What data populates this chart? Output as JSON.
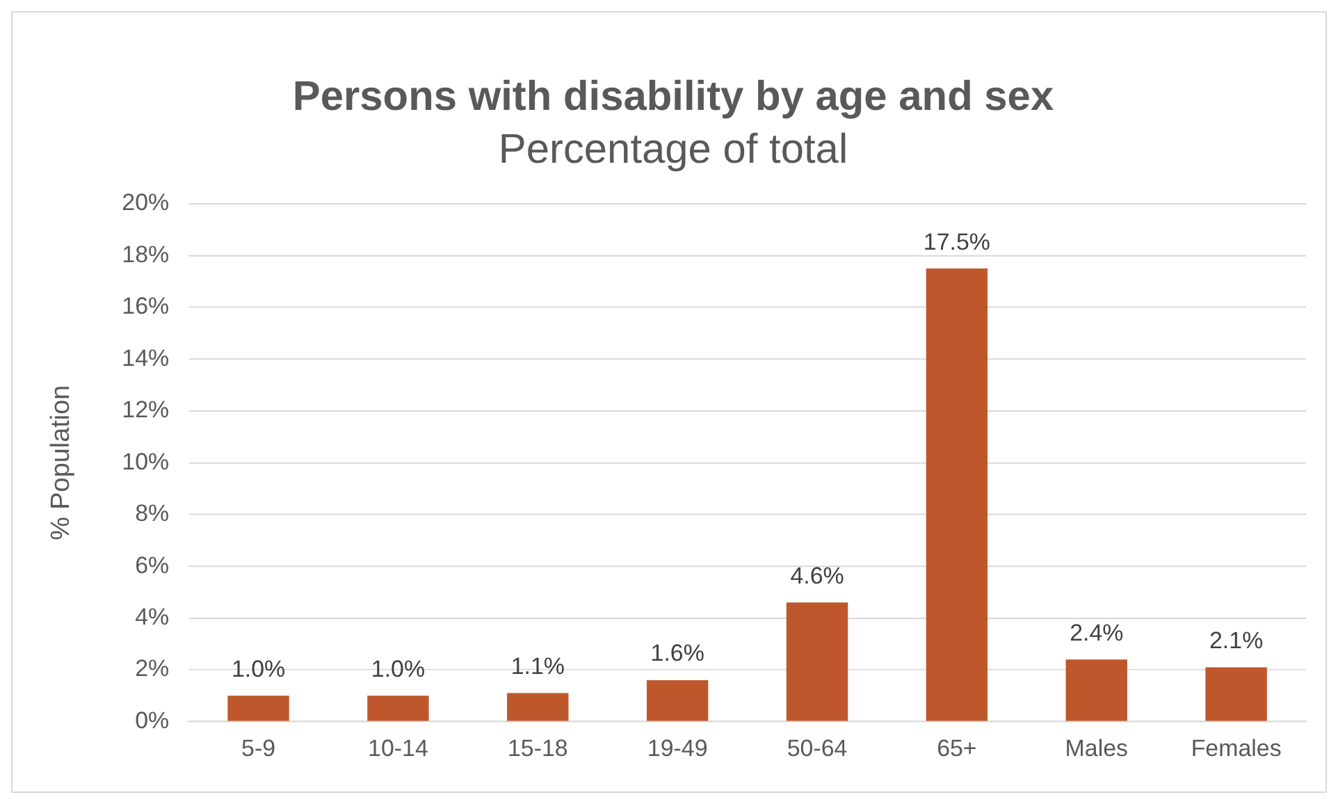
{
  "chart_data": {
    "type": "bar",
    "title": "Persons with disability by age and sex",
    "subtitle": "Percentage of total",
    "ylabel": "% Population",
    "categories": [
      "5-9",
      "10-14",
      "15-18",
      "19-49",
      "50-64",
      "65+",
      "Males",
      "Females"
    ],
    "values": [
      1.0,
      1.0,
      1.1,
      1.6,
      4.6,
      17.5,
      2.4,
      2.1
    ],
    "value_labels": [
      "1.0%",
      "1.0%",
      "1.1%",
      "1.6%",
      "4.6%",
      "17.5%",
      "2.4%",
      "2.1%"
    ],
    "color": "#be582c",
    "ylim": [
      0,
      20
    ],
    "yticks": [
      {
        "value": 0,
        "label": "0%"
      },
      {
        "value": 2,
        "label": "2%"
      },
      {
        "value": 4,
        "label": "4%"
      },
      {
        "value": 6,
        "label": "6%"
      },
      {
        "value": 8,
        "label": "8%"
      },
      {
        "value": 10,
        "label": "10%"
      },
      {
        "value": 12,
        "label": "12%"
      },
      {
        "value": 14,
        "label": "14%"
      },
      {
        "value": 16,
        "label": "16%"
      },
      {
        "value": 18,
        "label": "18%"
      },
      {
        "value": 20,
        "label": "20%"
      }
    ],
    "grid": "y",
    "legend": false
  }
}
